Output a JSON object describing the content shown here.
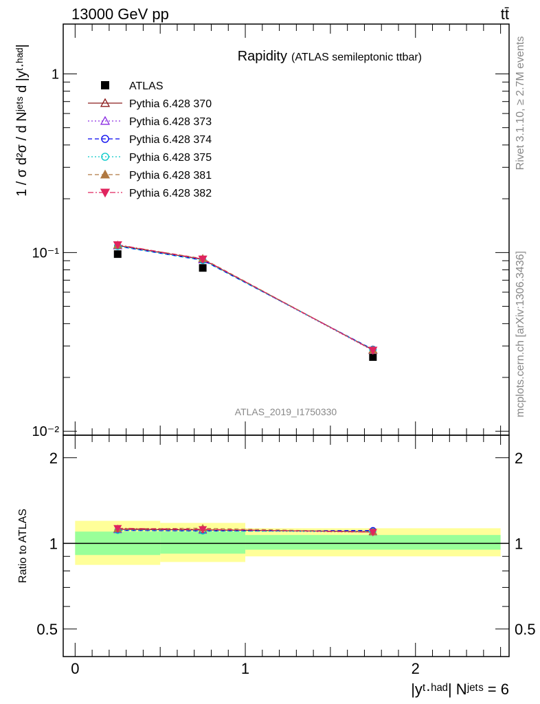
{
  "header": {
    "beam": "13000 GeV pp",
    "process": "tt̄"
  },
  "title": {
    "main": "Rapidity",
    "sub": "(ATLAS semileptonic ttbar)"
  },
  "analysis_id": "ATLAS_2019_I1750330",
  "side_labels": {
    "rivet": "Rivet 3.1.10, ≥ 2.7M events",
    "mcplots": "mcplots.cern.ch [arXiv:1306.3436]"
  },
  "axes": {
    "ylabel_main": "1 / σ d²σ / d Nʲᵉᵗˢ d |yᵗ·ʰᵃᵈ|",
    "ylabel_ratio": "Ratio to ATLAS",
    "xlabel": "|yᵗ·ʰᵃᵈ| Nʲᵉᵗˢ = 6",
    "main_ticks": [
      "10⁻²",
      "10⁻¹",
      "1"
    ],
    "ratio_ticks": [
      "0.5",
      "1",
      "2"
    ],
    "x_ticks": [
      "0",
      "1",
      "2"
    ]
  },
  "chart_data": {
    "type": "scatter",
    "x": [
      0.25,
      0.75,
      1.75
    ],
    "x_edges": [
      0,
      0.5,
      1,
      2.5
    ],
    "xlim": [
      -0.07,
      2.55
    ],
    "ylim_main": [
      0.0095,
      1.9
    ],
    "yscale_main": "log",
    "ylim_ratio": [
      0.4,
      2.4
    ],
    "yscale_ratio": "log",
    "legend_position": "top-left",
    "series": [
      {
        "name": "ATLAS",
        "values": [
          0.098,
          0.082,
          0.026
        ],
        "color": "#000000",
        "marker": "square",
        "line": "none"
      },
      {
        "name": "Pythia 6.428 370",
        "values": [
          0.1095,
          0.0915,
          0.0285
        ],
        "color": "#8b1a1a",
        "marker": "triangle-open",
        "line": "solid"
      },
      {
        "name": "Pythia 6.428 373",
        "values": [
          0.109,
          0.091,
          0.0283
        ],
        "color": "#8a2be2",
        "marker": "triangle-open",
        "line": "dotted"
      },
      {
        "name": "Pythia 6.428 374",
        "values": [
          0.1085,
          0.0905,
          0.0287
        ],
        "color": "#0000ee",
        "marker": "circle-open",
        "line": "dashed"
      },
      {
        "name": "Pythia 6.428 375",
        "values": [
          0.1085,
          0.0905,
          0.0286
        ],
        "color": "#00c8c8",
        "marker": "circle-open",
        "line": "dotted"
      },
      {
        "name": "Pythia 6.428 381",
        "values": [
          0.11,
          0.0925,
          0.0284
        ],
        "color": "#b07840",
        "marker": "triangle",
        "line": "dashed"
      },
      {
        "name": "Pythia 6.428 382",
        "values": [
          0.1105,
          0.092,
          0.0284
        ],
        "color": "#e0245e",
        "marker": "triangle-down",
        "line": "dashdot"
      }
    ],
    "ratio_series": [
      {
        "name": "Pythia 6.428 370",
        "values": [
          1.12,
          1.115,
          1.1
        ]
      },
      {
        "name": "Pythia 6.428 373",
        "values": [
          1.115,
          1.11,
          1.095
        ]
      },
      {
        "name": "Pythia 6.428 374",
        "values": [
          1.11,
          1.105,
          1.11
        ]
      },
      {
        "name": "Pythia 6.428 375",
        "values": [
          1.11,
          1.105,
          1.1
        ]
      },
      {
        "name": "Pythia 6.428 381",
        "values": [
          1.125,
          1.13,
          1.095
        ]
      },
      {
        "name": "Pythia 6.428 382",
        "values": [
          1.13,
          1.12,
          1.095
        ]
      }
    ],
    "bands": {
      "yellow": [
        [
          0.84,
          1.2
        ],
        [
          0.86,
          1.18
        ],
        [
          0.9,
          1.13
        ]
      ],
      "green": [
        [
          0.91,
          1.1
        ],
        [
          0.92,
          1.1
        ],
        [
          0.95,
          1.07
        ]
      ],
      "yellow_color": "#ffff99",
      "green_color": "#99ff99"
    }
  }
}
